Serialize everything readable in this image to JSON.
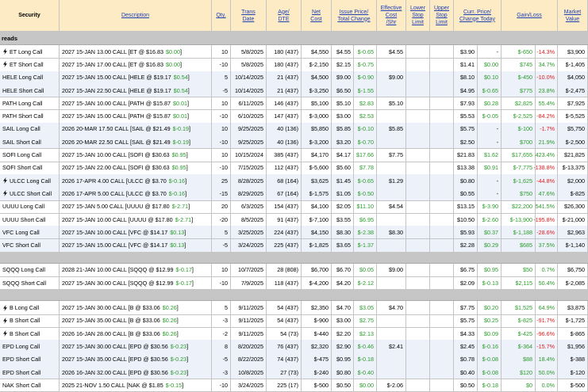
{
  "header": {
    "columns": [
      {
        "lines": [
          "Security"
        ]
      },
      {
        "lines": [
          "Description"
        ]
      },
      {
        "lines": [
          "Qty."
        ]
      },
      {
        "lines": [
          "Trans",
          "Date"
        ]
      },
      {
        "lines": [
          "Age/",
          "DTE"
        ]
      },
      {
        "lines": [
          "Net",
          "Cost"
        ]
      },
      {
        "lines": [
          "Issue Price/",
          "Total Change"
        ]
      },
      {
        "lines": [
          "Effective",
          "Cost",
          "/Shr"
        ]
      },
      {
        "lines": [
          "Lower",
          "Stop",
          "Limit"
        ]
      },
      {
        "lines": [
          "Upper",
          "Stop",
          "Limit"
        ]
      },
      {
        "lines": [
          "Curr. Price/",
          "Change Today"
        ]
      },
      {
        "lines": [
          "Gain/Loss"
        ]
      },
      {
        "lines": [
          "Market",
          "Value"
        ]
      }
    ]
  },
  "groups": [
    {
      "label": "reads",
      "rows": [
        {
          "security": "ET Long Call",
          "icon": true,
          "description": [
            "2027 15-JAN 13.00 CALL [ET @ $16.83",
            "$0.00",
            "]"
          ],
          "qty": 10,
          "trans_date": "5/8/2025",
          "age_dte": "180 (437)",
          "net_cost": "$4,550",
          "issue_price": "$4.55",
          "total_change": "$-0.65",
          "effective_cost": "$4.55",
          "curr_price": "$3.90",
          "change_today": "-",
          "gain": "$-650",
          "gain_pct": "-14.3%",
          "market_value": "$3,900"
        },
        {
          "security": "ET Short Call",
          "icon": true,
          "description": [
            "2027 15-JAN 17.00 CALL [ET @ $16.83",
            "$0.00",
            "]"
          ],
          "qty": -10,
          "trans_date": "5/8/2025",
          "age_dte": "180 (437)",
          "net_cost": "$-2,150",
          "issue_price": "$2.15",
          "total_change": "$-0.75",
          "curr_price": "$1.41",
          "change_today": "$0.00",
          "gain": "$745",
          "gain_pct": "34.7%",
          "market_value": "$-1,405"
        },
        {
          "security": "HELE Long Call",
          "shade": true,
          "description": [
            "2027 15-JAN 15.00 CALL [HELE @ $19.17",
            "$0.54",
            "]"
          ],
          "qty": 5,
          "trans_date": "10/14/2025",
          "age_dte": "21 (437)",
          "net_cost": "$4,500",
          "issue_price": "$9.00",
          "total_change": "$-0.90",
          "effective_cost": "$9.00",
          "curr_price": "$8.10",
          "change_today": "$0.10",
          "gain": "$-450",
          "gain_pct": "-10.0%",
          "market_value": "$4,050"
        },
        {
          "security": "HELE Short Call",
          "shade": true,
          "description": [
            "2027 15-JAN 22.50 CALL [HELE @ $19.17",
            "$0.54",
            "]"
          ],
          "qty": -5,
          "trans_date": "10/14/2025",
          "age_dte": "21 (437)",
          "net_cost": "$-3,250",
          "issue_price": "$6.50",
          "total_change": "$-1.55",
          "curr_price": "$4.95",
          "change_today": "$-0.65",
          "gain": "$775",
          "gain_pct": "23.8%",
          "market_value": "$-2,475"
        },
        {
          "security": "PATH Long Call",
          "description": [
            "2027 15-JAN 10.00 CALL [PATH @ $15.87",
            "$0.01",
            "]"
          ],
          "qty": 10,
          "trans_date": "6/11/2025",
          "age_dte": "146 (437)",
          "net_cost": "$5,100",
          "issue_price": "$5.10",
          "total_change": "$2.83",
          "effective_cost": "$5.10",
          "curr_price": "$7.93",
          "change_today": "$0.28",
          "gain": "$2,825",
          "gain_pct": "55.4%",
          "market_value": "$7,925"
        },
        {
          "security": "PATH Short Call",
          "description": [
            "2027 15-JAN 15.00 CALL [PATH @ $15.87",
            "$0.01",
            "]"
          ],
          "qty": -10,
          "trans_date": "6/10/2025",
          "age_dte": "147 (437)",
          "net_cost": "$-3,000",
          "issue_price": "$3.00",
          "total_change": "$2.53",
          "curr_price": "$5.53",
          "change_today": "$-0.05",
          "gain": "$-2,525",
          "gain_pct": "-84.2%",
          "market_value": "$-5,525"
        },
        {
          "security": "SAIL Long Call",
          "shade": true,
          "description": [
            "2026 20-MAR 17.50 CALL [SAIL @ $21.49",
            "$-0.19",
            "]"
          ],
          "qty": 10,
          "trans_date": "9/25/2025",
          "age_dte": "40 (136)",
          "net_cost": "$5,850",
          "issue_price": "$5.85",
          "total_change": "$-0.10",
          "effective_cost": "$5.85",
          "curr_price": "$5.75",
          "change_today": "-",
          "gain": "$-100",
          "gain_pct": "-1.7%",
          "market_value": "$5,750"
        },
        {
          "security": "SAIL Short Call",
          "shade": true,
          "description": [
            "2026 20-MAR 22.50 CALL [SAIL @ $21.49",
            "$-0.19",
            "]"
          ],
          "qty": -10,
          "trans_date": "9/25/2025",
          "age_dte": "40 (136)",
          "net_cost": "$-3,200",
          "issue_price": "$3.20",
          "total_change": "$-0.70",
          "curr_price": "$2.50",
          "change_today": "-",
          "gain": "$700",
          "gain_pct": "21.9%",
          "market_value": "$-2,500"
        },
        {
          "security": "SOFI Long Call",
          "description": [
            "2027 15-JAN 10.00 CALL [SOFI @ $30.63",
            "$0.95",
            "]"
          ],
          "qty": 10,
          "trans_date": "10/15/2024",
          "age_dte": "385 (437)",
          "net_cost": "$4,170",
          "issue_price": "$4.17",
          "total_change": "$17.66",
          "effective_cost": "$7.75",
          "curr_price": "$21.83",
          "change_today": "$1.62",
          "gain": "$17,655",
          "gain_pct": "423.4%",
          "market_value": "$21,825"
        },
        {
          "security": "SOFI Short Call",
          "description": [
            "2027 15-JAN 22.00 CALL [SOFI @ $30.63",
            "$0.95",
            "]"
          ],
          "qty": -10,
          "trans_date": "7/15/2025",
          "age_dte": "112 (437)",
          "net_cost": "$-5,600",
          "issue_price": "$5.60",
          "total_change": "$7.78",
          "curr_price": "$13.38",
          "change_today": "$0.91",
          "gain": "$-7,775",
          "gain_pct": "-138.8%",
          "market_value": "$-13,375"
        },
        {
          "security": "ULCC Long Call",
          "icon": true,
          "shade": true,
          "description": [
            "2026 17-APR 4.00 CALL [ULCC @ $3.70",
            "$-0.16",
            "]"
          ],
          "qty": 25,
          "trans_date": "8/28/2025",
          "age_dte": "68 (164)",
          "net_cost": "$3,625",
          "issue_price": "$1.45",
          "total_change": "$-0.65",
          "effective_cost": "$1.29",
          "curr_price": "$0.80",
          "change_today": "-",
          "gain": "$-1,625",
          "gain_pct": "-44.8%",
          "market_value": "$2,000"
        },
        {
          "security": "ULCC Short Call",
          "icon": true,
          "shade": true,
          "description": [
            "2026 17-APR 5.00 CALL [ULCC @ $3.70",
            "$-0.16",
            "]"
          ],
          "qty": -15,
          "trans_date": "8/29/2025",
          "age_dte": "67 (164)",
          "net_cost": "$-1,575",
          "issue_price": "$1.05",
          "total_change": "$-0.50",
          "curr_price": "$0.55",
          "change_today": "-",
          "gain": "$750",
          "gain_pct": "47.6%",
          "market_value": "$-825"
        },
        {
          "security": "UUUU Long Call",
          "description": [
            "2027 15-JAN 5.00 CALL [UUUU @ $17.80",
            "$-2.71",
            "]"
          ],
          "qty": 20,
          "trans_date": "6/3/2025",
          "age_dte": "154 (437)",
          "net_cost": "$4,100",
          "issue_price": "$2.05",
          "total_change": "$11.10",
          "effective_cost": "$4.54",
          "curr_price": "$13.15",
          "change_today": "$-3.90",
          "gain": "$22,200",
          "gain_pct": "541.5%",
          "market_value": "$26,300"
        },
        {
          "security": "UUUU Short Call",
          "description": [
            "2027 15-JAN 10.00 CALL [UUUU @ $17.80",
            "$-2.71",
            "]"
          ],
          "qty": -20,
          "trans_date": "8/5/2025",
          "age_dte": "91 (437)",
          "net_cost": "$-7,100",
          "issue_price": "$3.55",
          "total_change": "$6.95",
          "curr_price": "$10.50",
          "change_today": "$-2.60",
          "gain": "$-13,900",
          "gain_pct": "-195.8%",
          "market_value": "$-21,000"
        },
        {
          "security": "VFC Long Call",
          "shade": true,
          "description": [
            "2027 15-JAN 10.00 CALL [VFC @ $14.17",
            "$0.13",
            "]"
          ],
          "qty": 5,
          "trans_date": "3/25/2025",
          "age_dte": "224 (437)",
          "net_cost": "$4,150",
          "issue_price": "$8.30",
          "total_change": "$-2.38",
          "effective_cost": "$8.30",
          "curr_price": "$5.93",
          "change_today": "$0.37",
          "gain": "$-1,188",
          "gain_pct": "-28.6%",
          "market_value": "$2,963"
        },
        {
          "security": "VFC Short Call",
          "shade": true,
          "description": [
            "2027 15-JAN 15.00 CALL [VFC @ $14.17",
            "$0.13",
            "]"
          ],
          "qty": -5,
          "trans_date": "3/24/2025",
          "age_dte": "225 (437)",
          "net_cost": "$-1,825",
          "issue_price": "$3.65",
          "total_change": "$-1.37",
          "curr_price": "$2.28",
          "change_today": "$0.29",
          "gain": "$685",
          "gain_pct": "37.5%",
          "market_value": "$-1,140"
        }
      ]
    },
    {
      "rows": [
        {
          "security": "SQQQ Long Call",
          "description": [
            "2028 21-JAN 10.00 CALL [SQQQ @ $12.99",
            "$-0.17",
            "]"
          ],
          "qty": 10,
          "trans_date": "10/7/2025",
          "age_dte": "28 (808)",
          "net_cost": "$6,700",
          "issue_price": "$6.70",
          "total_change": "$0.05",
          "effective_cost": "$9.00",
          "curr_price": "$6.75",
          "change_today": "$0.95",
          "gain": "$50",
          "gain_pct": "0.7%",
          "market_value": "$6,750"
        },
        {
          "security": "SQQQ Short Call",
          "description": [
            "2027 15-JAN 30.00 CALL [SQQQ @ $12.99",
            "$-0.17",
            "]"
          ],
          "qty": -10,
          "trans_date": "7/9/2025",
          "age_dte": "118 (437)",
          "net_cost": "$-4,200",
          "issue_price": "$4.20",
          "total_change": "$-2.12",
          "curr_price": "$2.09",
          "change_today": "$-0.13",
          "gain": "$2,115",
          "gain_pct": "50.4%",
          "market_value": "$-2,085"
        }
      ]
    },
    {
      "rows": [
        {
          "security": "B Long Call",
          "icon": true,
          "description": [
            "2027 15-JAN 30.00 CALL [B @ $33.06",
            "$0.26",
            "]"
          ],
          "qty": 5,
          "trans_date": "9/11/2025",
          "age_dte": "54 (437)",
          "net_cost": "$2,350",
          "issue_price": "$4.70",
          "total_change": "$3.05",
          "effective_cost": "$4.70",
          "curr_price": "$7.75",
          "change_today": "$0.20",
          "gain": "$1,525",
          "gain_pct": "64.9%",
          "market_value": "$3,875"
        },
        {
          "security": "B Short Call",
          "icon": true,
          "description": [
            "2027 15-JAN 35.00 CALL [B @ $33.06",
            "$0.26",
            "]"
          ],
          "qty": -3,
          "trans_date": "9/11/2025",
          "age_dte": "54 (437)",
          "net_cost": "$-900",
          "issue_price": "$3.00",
          "total_change": "$2.75",
          "curr_price": "$5.75",
          "change_today": "$0.25",
          "gain": "$-825",
          "gain_pct": "-91.7%",
          "market_value": "$-1,725"
        },
        {
          "security": "B Short Call",
          "icon": true,
          "description": [
            "2026 16-JAN 28.00 CALL [B @ $33.06",
            "$0.26",
            "]"
          ],
          "qty": -2,
          "trans_date": "9/11/2025",
          "age_dte": "54 (73)",
          "net_cost": "$-440",
          "issue_price": "$2.20",
          "total_change": "$2.13",
          "curr_price": "$4.33",
          "change_today": "$0.09",
          "gain": "$-425",
          "gain_pct": "-96.6%",
          "market_value": "$-865"
        },
        {
          "security": "EPD Long Call",
          "shade": true,
          "description": [
            "2027 15-JAN 30.00 CALL [EPD @ $30.56",
            "$-0.23",
            "]"
          ],
          "qty": 8,
          "trans_date": "8/20/2025",
          "age_dte": "76 (437)",
          "net_cost": "$2,320",
          "issue_price": "$2.90",
          "total_change": "$-0.46",
          "effective_cost": "$2.41",
          "curr_price": "$2.45",
          "change_today": "$-0.16",
          "gain": "$-364",
          "gain_pct": "-15.7%",
          "market_value": "$1,956"
        },
        {
          "security": "EPD Short Call",
          "shade": true,
          "description": [
            "2027 15-JAN 35.00 CALL [EPD @ $30.56",
            "$-0.23",
            "]"
          ],
          "qty": -5,
          "trans_date": "8/22/2025",
          "age_dte": "74 (437)",
          "net_cost": "$-475",
          "issue_price": "$0.95",
          "total_change": "$-0.18",
          "curr_price": "$0.78",
          "change_today": "$-0.08",
          "gain": "$88",
          "gain_pct": "18.4%",
          "market_value": "$-388"
        },
        {
          "security": "EPD Short Call",
          "shade": true,
          "description": [
            "2026 16-JAN 32.00 CALL [EPD @ $30.56",
            "$-0.23",
            "]"
          ],
          "qty": -3,
          "trans_date": "10/8/2025",
          "age_dte": "27 (73)",
          "net_cost": "$-240",
          "issue_price": "$0.80",
          "total_change": "$-0.40",
          "curr_price": "$0.40",
          "change_today": "$-0.08",
          "gain": "$120",
          "gain_pct": "50.0%",
          "market_value": "$-120"
        },
        {
          "security": "NAK Short Call",
          "description": [
            "2025 21-NOV 1.50 CALL [NAK @ $1.85",
            "$-0.15",
            "]"
          ],
          "qty": -10,
          "trans_date": "3/24/2025",
          "age_dte": "225 (17)",
          "net_cost": "$-500",
          "issue_price": "$0.50",
          "total_change": "$0.00",
          "effective_cost": "$-2.06",
          "curr_price": "$0.50",
          "change_today": "$-0.18",
          "gain": "$0",
          "gain_pct": "0.0%",
          "market_value": "$-500"
        }
      ]
    }
  ]
}
